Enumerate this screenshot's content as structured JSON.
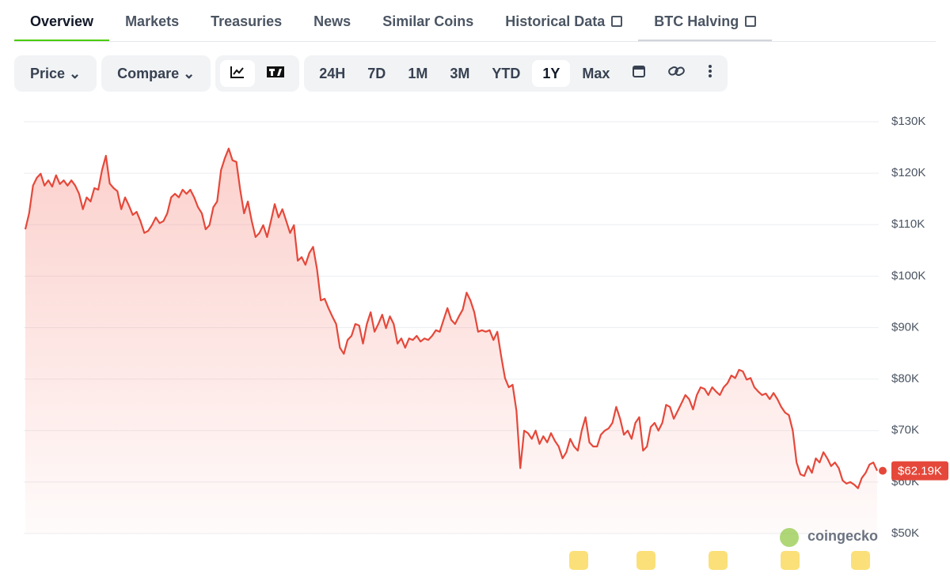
{
  "tabs": [
    "Overview",
    "Markets",
    "Treasuries",
    "News",
    "Similar Coins",
    "Historical Data",
    "BTC Halving"
  ],
  "toolbar": {
    "price": "Price",
    "compare": "Compare",
    "ranges": [
      "24H",
      "7D",
      "1M",
      "3M",
      "YTD",
      "1Y",
      "Max"
    ]
  },
  "watermark": "coingecko",
  "chart_data": {
    "type": "line",
    "color": "#e5483a",
    "grid": true,
    "ylim": [
      50000,
      130000
    ],
    "yticks": [
      {
        "value": 50000,
        "label": "$50K"
      },
      {
        "value": 60000,
        "label": "$60K"
      },
      {
        "value": 70000,
        "label": "$70K"
      },
      {
        "value": 80000,
        "label": "$80K"
      },
      {
        "value": 90000,
        "label": "$90K"
      },
      {
        "value": 100000,
        "label": "$100K"
      },
      {
        "value": 110000,
        "label": "$110K"
      },
      {
        "value": 120000,
        "label": "$120K"
      },
      {
        "value": 130000,
        "label": "$130K"
      }
    ],
    "current_price": {
      "value": 62190,
      "label": "$62.19K"
    },
    "values": [
      109100,
      112200,
      117600,
      119100,
      119900,
      117600,
      118600,
      117400,
      119600,
      117900,
      118600,
      117600,
      118600,
      117600,
      116000,
      113000,
      115300,
      114500,
      117100,
      116800,
      120600,
      123400,
      118000,
      117100,
      116500,
      113000,
      115300,
      113700,
      111900,
      112500,
      110700,
      108400,
      108800,
      109900,
      111400,
      110300,
      110700,
      112200,
      115300,
      116000,
      115300,
      116800,
      116000,
      116800,
      115300,
      113400,
      112200,
      109100,
      109900,
      113400,
      114500,
      120600,
      122900,
      124800,
      122500,
      122200,
      116800,
      112200,
      114500,
      110700,
      107600,
      108400,
      109900,
      107600,
      110700,
      114000,
      111400,
      113000,
      110700,
      108400,
      109900,
      103000,
      103700,
      102200,
      104500,
      105700,
      101400,
      95300,
      95600,
      93800,
      92200,
      90700,
      86100,
      84900,
      87600,
      88400,
      90700,
      90400,
      86900,
      90700,
      93000,
      89200,
      90700,
      92500,
      89900,
      92200,
      90700,
      86900,
      87900,
      86100,
      87900,
      87600,
      88400,
      87300,
      87900,
      87600,
      88400,
      89500,
      89200,
      91500,
      93800,
      91500,
      90700,
      92200,
      93500,
      96800,
      95300,
      93000,
      89200,
      89500,
      89200,
      89500,
      87600,
      89200,
      84500,
      80200,
      78400,
      78900,
      73800,
      62700,
      70000,
      69500,
      68400,
      70000,
      67400,
      68900,
      67700,
      69500,
      68000,
      66900,
      64600,
      65800,
      68400,
      66900,
      66100,
      70000,
      72600,
      67700,
      66900,
      66900,
      69200,
      70000,
      70400,
      71500,
      74600,
      72300,
      69200,
      70000,
      68400,
      71500,
      72600,
      66100,
      66900,
      70700,
      71500,
      70000,
      71500,
      75000,
      74600,
      72300,
      73800,
      75300,
      76900,
      76100,
      74100,
      76900,
      78400,
      78100,
      76900,
      78400,
      77600,
      76900,
      78400,
      79200,
      80700,
      80200,
      81800,
      81500,
      79900,
      80200,
      78400,
      77600,
      76900,
      77200,
      76100,
      77300,
      76100,
      74600,
      73500,
      73000,
      70000,
      63800,
      61500,
      61200,
      63100,
      61800,
      64600,
      63800,
      65800,
      64600,
      63100,
      63800,
      62700,
      60300,
      59700,
      60000,
      59500,
      58800,
      60800,
      61800,
      63400,
      63800,
      62190
    ]
  }
}
